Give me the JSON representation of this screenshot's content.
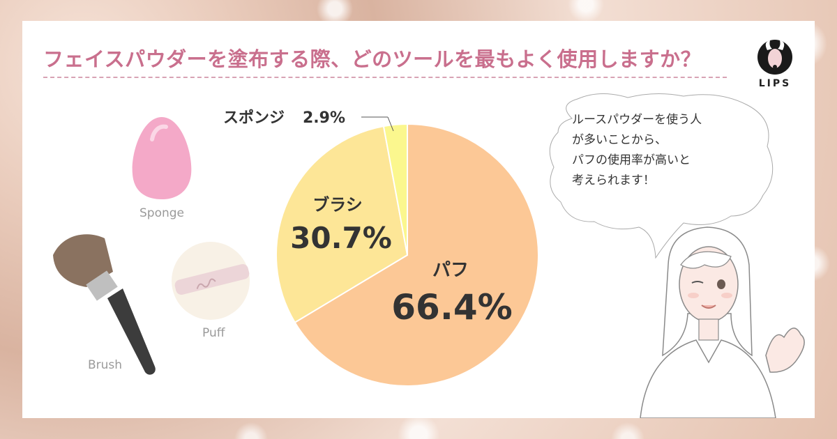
{
  "title": "フェイスパウダーを塗布する際、どのツールを最もよく使用しますか？",
  "logo": {
    "text": "LIPS"
  },
  "items": {
    "sponge": "Sponge",
    "puff": "Puff",
    "brush": "Brush"
  },
  "bubble": {
    "lines": [
      "ルースパウダーを使う人",
      "が多いことから、",
      "パフの使用率が高いと",
      "考えられます！"
    ]
  },
  "colors": {
    "title": "#c96f8d",
    "puff_slice": "#fcc896",
    "brush_slice": "#fde697",
    "sponge_slice": "#fbf78e"
  },
  "chart_data": {
    "type": "pie",
    "title": "フェイスパウダーを塗布する際、どのツールを最もよく使用しますか？",
    "categories": [
      "パフ",
      "ブラシ",
      "スポンジ"
    ],
    "values": [
      66.4,
      30.7,
      2.9
    ],
    "value_labels": [
      "66.4%",
      "30.7%",
      "2.9%"
    ],
    "colors": [
      "#fcc896",
      "#fde697",
      "#fbf78e"
    ],
    "start": "12 o'clock",
    "direction": "clockwise"
  }
}
